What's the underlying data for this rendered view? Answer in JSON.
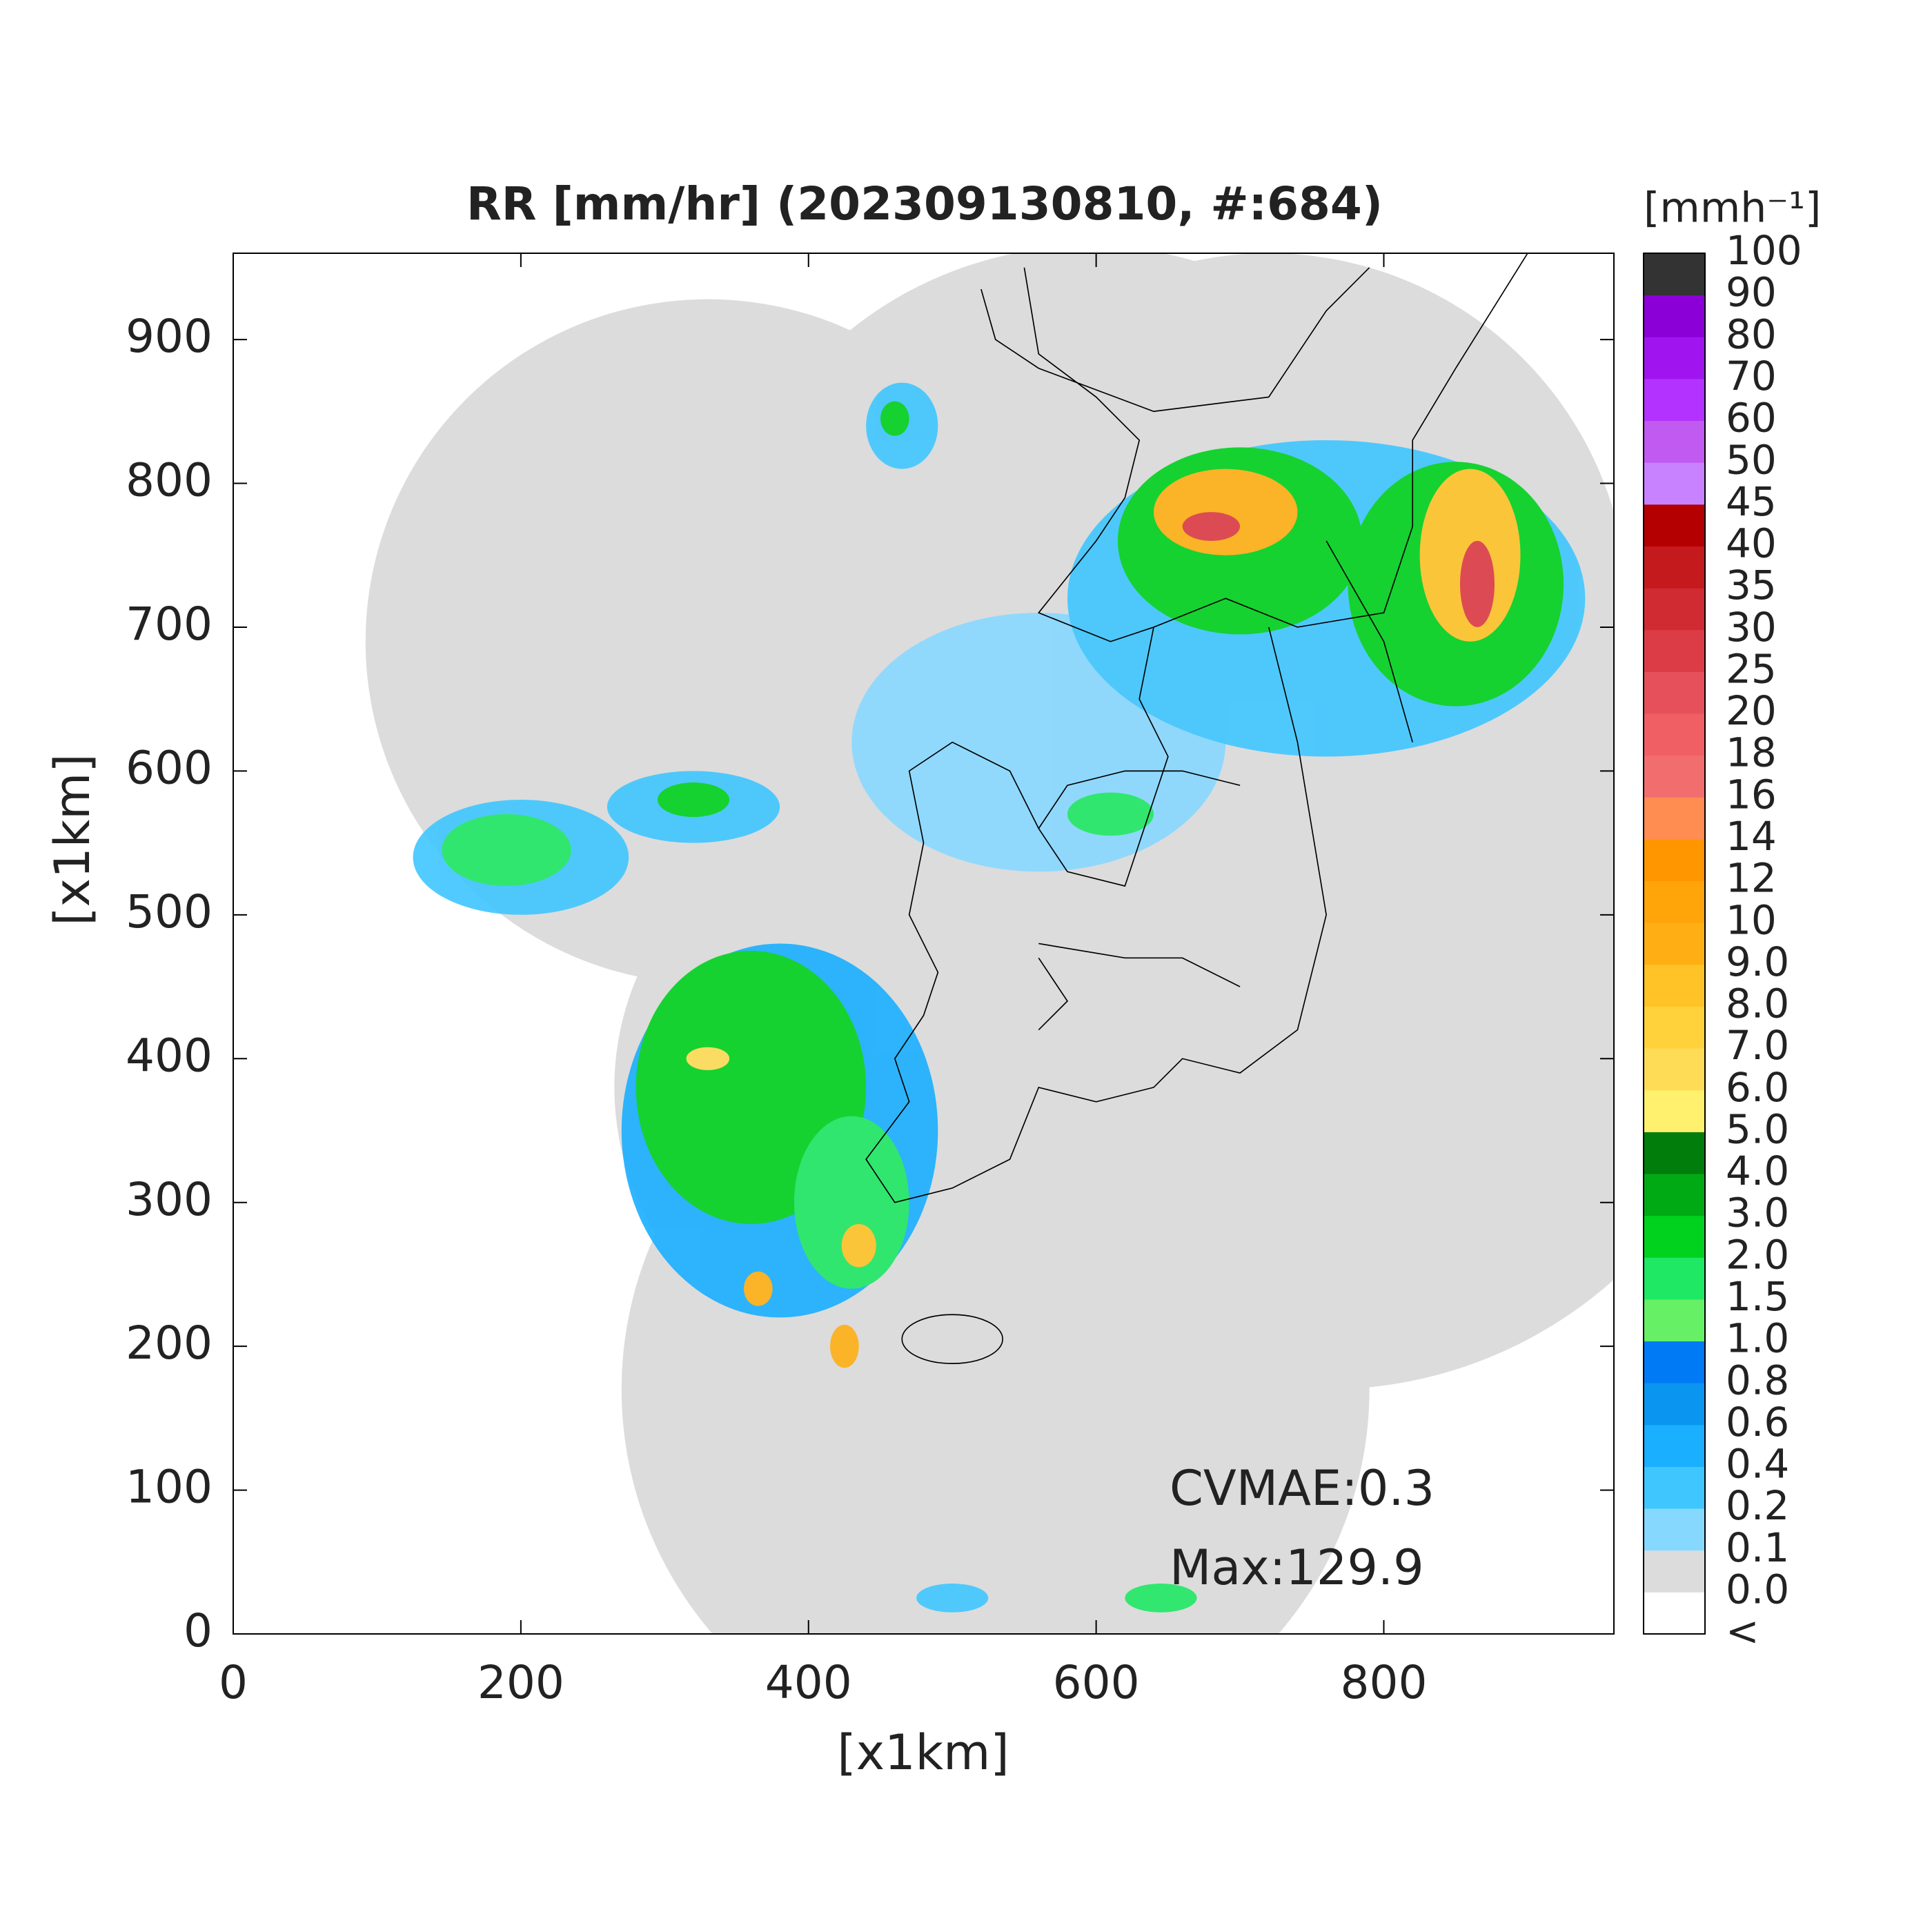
{
  "chart_data": {
    "type": "radar-map",
    "title": "RR [mm/hr] (202309130810, #:684)",
    "x_label": "[x1km]",
    "y_label": "[x1km]",
    "xlim": [
      0,
      960
    ],
    "ylim": [
      0,
      960
    ],
    "xticks": [
      0,
      200,
      400,
      600,
      800
    ],
    "yticks": [
      0,
      100,
      200,
      300,
      400,
      500,
      600,
      700,
      800,
      900
    ],
    "annotations": [
      "CVMAE:0.3",
      "Max:129.9"
    ],
    "colorbar": {
      "label": "[mmh⁻¹]",
      "tick_labels": [
        "<",
        "0.0",
        "0.1",
        "0.2",
        "0.4",
        "0.6",
        "0.8",
        "1.0",
        "1.5",
        "2.0",
        "3.0",
        "4.0",
        "5.0",
        "6.0",
        "7.0",
        "8.0",
        "9.0",
        "10",
        "12",
        "14",
        "16",
        "18",
        "20",
        "25",
        "30",
        "35",
        "40",
        "45",
        "50",
        "60",
        "70",
        "80",
        "90",
        "100"
      ],
      "colors": [
        "#ffffff",
        "#dcdcdc",
        "#87d8ff",
        "#3fc6ff",
        "#1aafff",
        "#0a96f0",
        "#007bf5",
        "#66f066",
        "#1ee864",
        "#00d21e",
        "#00aa14",
        "#007d0a",
        "#fff06e",
        "#ffdc55",
        "#ffd23c",
        "#ffc328",
        "#ffaf14",
        "#ffa50a",
        "#ff9600",
        "#ff8c50",
        "#f26e6e",
        "#f05f64",
        "#e6505a",
        "#dc3c46",
        "#d02a32",
        "#c41a1e",
        "#b40000",
        "#c882ff",
        "#c05af0",
        "#b432ff",
        "#a014f0",
        "#8c00d8",
        "#333333"
      ]
    }
  }
}
